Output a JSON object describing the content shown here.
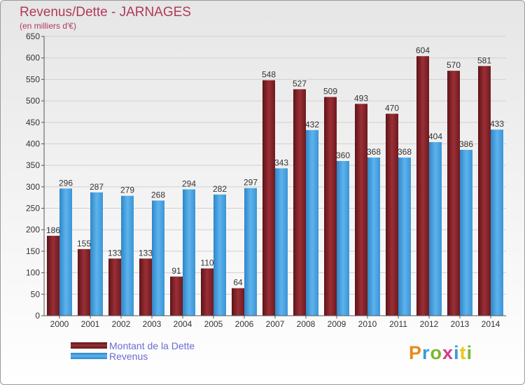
{
  "title": "Revenus/Dette - JARNAGES",
  "subtitle": "(en milliers d'€)",
  "logo": {
    "text": "Proxiti",
    "colors": [
      "#e88a1a",
      "#3a9ad9",
      "#7ab82e",
      "#d23c8c",
      "#3a9ad9",
      "#e8c81a",
      "#7ab82e"
    ]
  },
  "chart_data": {
    "type": "bar",
    "title": "Revenus/Dette - JARNAGES",
    "subtitle": "(en milliers d'€)",
    "categories": [
      "2000",
      "2001",
      "2002",
      "2003",
      "2004",
      "2005",
      "2006",
      "2007",
      "2008",
      "2009",
      "2010",
      "2011",
      "2012",
      "2013",
      "2014"
    ],
    "series": [
      {
        "name": "Montant de la Dette",
        "color": "#7a1f24",
        "values": [
          186,
          155,
          133,
          133,
          91,
          110,
          64,
          548,
          527,
          509,
          493,
          470,
          604,
          570,
          581
        ]
      },
      {
        "name": "Revenus",
        "color": "#4aa3e0",
        "values": [
          296,
          287,
          279,
          268,
          294,
          282,
          297,
          343,
          432,
          360,
          368,
          368,
          404,
          386,
          433
        ]
      }
    ],
    "ylim": [
      0,
      650
    ],
    "yticks": [
      0,
      50,
      100,
      150,
      200,
      250,
      300,
      350,
      400,
      450,
      500,
      550,
      600,
      650
    ],
    "grid": true,
    "legend": "bottom-left"
  }
}
